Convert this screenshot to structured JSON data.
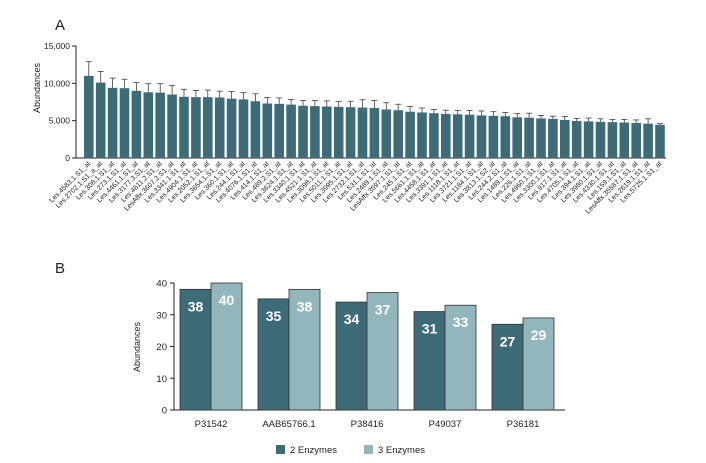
{
  "chart_data": [
    {
      "panel": "A",
      "type": "bar",
      "title": "",
      "xlabel": "",
      "ylabel": "Abundances",
      "ylim": [
        0,
        15000
      ],
      "yticks": [
        "0",
        "5,000",
        "10,000",
        "15,000"
      ],
      "grid": false,
      "color": "#3d6b78",
      "categories": [
        "Les.4583.1.S1_at",
        "Les.2702.1.S1_a_at",
        "Les.308.1.S1_at",
        "Les.273.1.S1_at",
        "Les.4461.1.S1_at",
        "Les.3177.3.S1_at",
        "Les.4611.2.S1_at",
        "LesAffx.3607.2.S1_at",
        "Les.3341.1.S1_at",
        "Les.4904.1.S1_at",
        "Les.2052.1.S1_at",
        "Les.3654.1.S1_at",
        "Les.360.1.S1_at",
        "Les.244.1.S1_at",
        "Les.4076.1.S1_at",
        "Les.414.1.S1_at",
        "Les.489.2.S1_at",
        "Les.3624.1.S1_at",
        "Les.3340.1.S1_at",
        "Les.4521.1.S1_at",
        "Les.3098.1.S1_at",
        "Les.5011.1.S1_at",
        "Les.3995.1.S1_at",
        "Les.2732.1.S1_at",
        "Les.531.1.S1_at",
        "Les.2489.1.S1_at",
        "LesAffx.3597.1.S1_at",
        "Les.245.1.S1_at",
        "Les.5661.1.S1_at",
        "Les.4458.1.S1_at",
        "Les.3391.1.S1_at",
        "Les.1118.1.S1_at",
        "Les.3721.1.S1_at",
        "Les.1184.1.S1_at",
        "Les.3813.1.S2_at",
        "Les.244.2.S1_at",
        "Les.1489.1.S1_at",
        "Les.226.1.S1_at",
        "Les.4960.1.S1_at",
        "Les.3300.1.S1_at",
        "Les.917.1.S1_at",
        "Les.4705.1.S1_at",
        "Les.394.1.S1_at",
        "Les.3980.1.S1_at",
        "Les.4330.1.S1_at",
        "Les.159.1.S1_at",
        "LesAffx.35587.1.S1_at",
        "Les.2619.1.S1_at",
        "Les.5725.1.S1_at"
      ],
      "values": [
        11000,
        10100,
        9400,
        9350,
        9000,
        8800,
        8750,
        8500,
        8200,
        8150,
        8150,
        8100,
        7950,
        7850,
        7600,
        7300,
        7250,
        7150,
        7000,
        6950,
        6900,
        6850,
        6800,
        6750,
        6700,
        6500,
        6400,
        6200,
        6100,
        6000,
        5900,
        5850,
        5800,
        5700,
        5650,
        5600,
        5450,
        5400,
        5300,
        5250,
        5100,
        4950,
        4900,
        4850,
        4800,
        4750,
        4700,
        4600,
        4450
      ],
      "errors": [
        1900,
        1500,
        1300,
        1200,
        1100,
        1150,
        1200,
        1200,
        1000,
        900,
        950,
        850,
        950,
        900,
        1000,
        800,
        800,
        700,
        700,
        750,
        750,
        700,
        800,
        1050,
        1000,
        900,
        800,
        700,
        600,
        500,
        500,
        500,
        550,
        600,
        550,
        500,
        500,
        600,
        400,
        350,
        450,
        350,
        450,
        400,
        350,
        400,
        400,
        650,
        150
      ]
    },
    {
      "panel": "B",
      "type": "bar",
      "title": "",
      "xlabel": "",
      "ylabel": "Abundances",
      "ylim": [
        0,
        40
      ],
      "yticks": [
        "0",
        "10",
        "20",
        "30",
        "40"
      ],
      "grid": false,
      "categories": [
        "P31542",
        "AAB65766.1",
        "P38416",
        "P49037",
        "P36181"
      ],
      "series": [
        {
          "name": "2 Enzymes",
          "color": "#3d6b78",
          "values": [
            38,
            35,
            34,
            31,
            27
          ],
          "labels": [
            "38",
            "35",
            "34",
            "31",
            "27"
          ]
        },
        {
          "name": "3 Enzymes",
          "color": "#93b5bc",
          "values": [
            40,
            38,
            37,
            33,
            29
          ],
          "labels": [
            "40",
            "38",
            "37",
            "33",
            "29"
          ]
        }
      ],
      "legend_position": "bottom-center"
    }
  ]
}
